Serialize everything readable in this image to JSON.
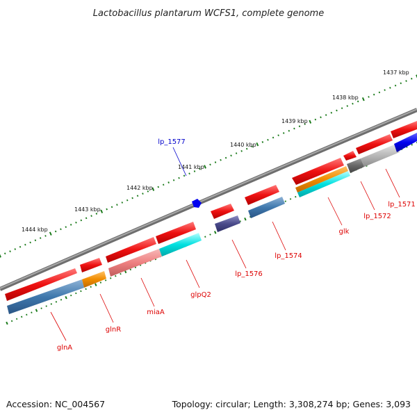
{
  "header": {
    "title": "Lactobacillus plantarum WCFS1, complete genome"
  },
  "footer": {
    "accession": "Accession: NC_004567",
    "topology": "Topology: circular; Length: 3,308,274 bp; Genes: 3,093"
  },
  "scale_labels": [
    "1437 kbp",
    "1438 kbp",
    "1439 kbp",
    "1440 kbp",
    "1441 kbp",
    "1442 kbp",
    "1443 kbp",
    "1444 kbp"
  ],
  "colors": {
    "backbone": "#7a7a7a",
    "cds_forward": "#ee1111",
    "tick": "#1a7a1a",
    "label_red": "#dd0000",
    "label_blue": "#0000cc"
  },
  "genes": [
    {
      "name": "glnA",
      "color": "#3f78ad"
    },
    {
      "name": "glnR",
      "color": "#f08c00"
    },
    {
      "name": "miaA",
      "color": "#ee8080"
    },
    {
      "name": "glpQ2",
      "color": "#00e0e0"
    },
    {
      "name": "lp_1576",
      "color": "#4a4a8a"
    },
    {
      "name": "lp_1574",
      "color": "#3f78ad"
    },
    {
      "name": "glk",
      "color": "#f08c00"
    },
    {
      "name": "lp_1572",
      "color": "#b8b8b8"
    },
    {
      "name": "lp_1571",
      "color": "#0000ee"
    },
    {
      "name": "lp_1577",
      "color": "#0000ee"
    }
  ]
}
